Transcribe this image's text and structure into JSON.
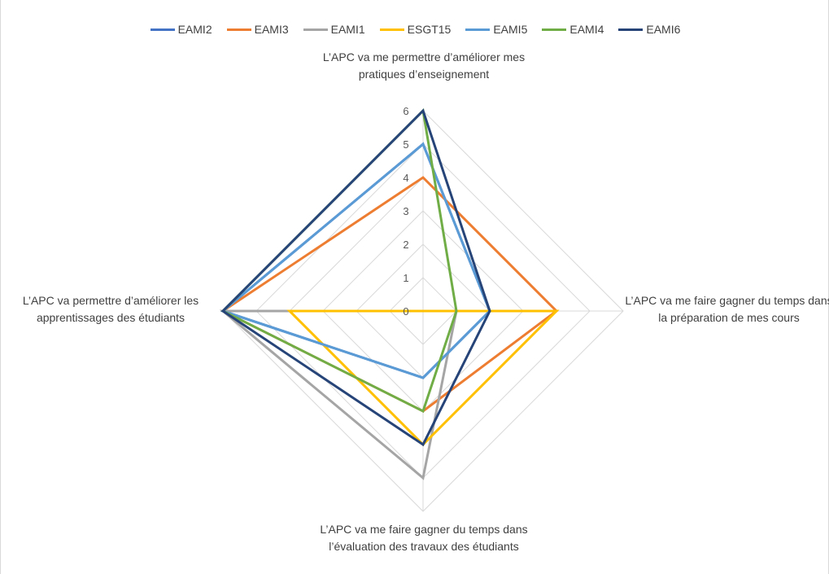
{
  "chart_data": {
    "type": "radar",
    "axes": [
      "L’APC va me permettre d’améliorer mes pratiques d’enseignement",
      "L’APC va me faire gagner du temps dans la préparation de mes cours",
      "L’APC va me faire gagner du temps dans l’évaluation des travaux des étudiants",
      "L’APC va permettre d’améliorer les apprentissages des étudiants"
    ],
    "rlim": [
      0,
      6
    ],
    "ticks": [
      "0",
      "1",
      "2",
      "3",
      "4",
      "5",
      "6"
    ],
    "grid": true,
    "legend_position": "top",
    "series": [
      {
        "name": "EAMI2",
        "color": "#4472C4",
        "values": [
          5,
          2,
          2,
          6
        ]
      },
      {
        "name": "EAMI3",
        "color": "#ED7D31",
        "values": [
          4,
          4,
          3,
          6
        ]
      },
      {
        "name": "EAMI1",
        "color": "#A5A5A5",
        "values": [
          0,
          1,
          5,
          6
        ]
      },
      {
        "name": "ESGT15",
        "color": "#FFC000",
        "values": [
          0,
          4,
          4,
          4
        ]
      },
      {
        "name": "EAMI5",
        "color": "#5B9BD5",
        "values": [
          5,
          2,
          2,
          6
        ]
      },
      {
        "name": "EAMI4",
        "color": "#70AD47",
        "values": [
          6,
          1,
          3,
          6
        ]
      },
      {
        "name": "EAMI6",
        "color": "#264478",
        "values": [
          6,
          2,
          4,
          6
        ]
      }
    ]
  },
  "labels": {
    "top": "L’APC va me permettre d’améliorer mes pratiques d’enseignement",
    "right": "L’APC va me faire gagner du temps dans la préparation de mes cours",
    "bottom": "L’APC va me faire gagner du temps dans l’évaluation des travaux des étudiants",
    "left": "L’APC va permettre d’améliorer les apprentissages des étudiants"
  }
}
